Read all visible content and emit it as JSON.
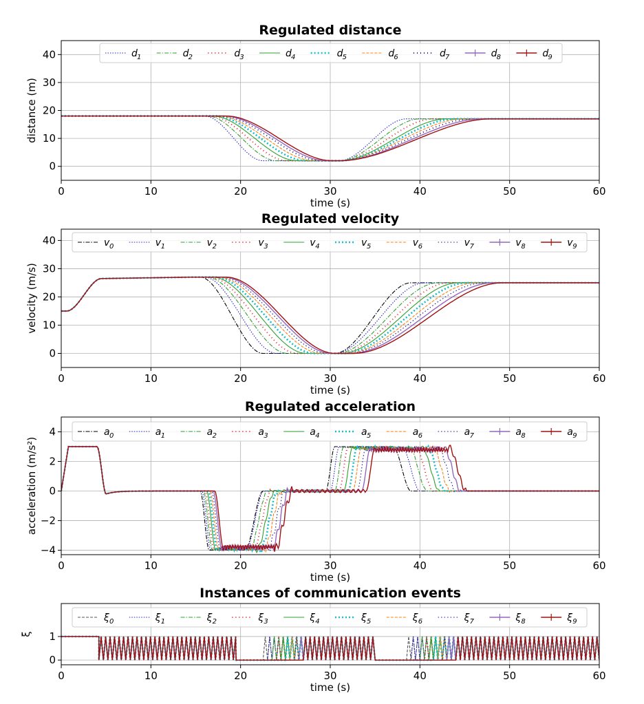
{
  "chart_data": [
    {
      "type": "line",
      "title": "Regulated distance",
      "xlabel": "time (s)",
      "ylabel": "distance (m)",
      "xlim": [
        0,
        60
      ],
      "ylim": [
        -5,
        45
      ],
      "xticks": [
        "0",
        "10",
        "20",
        "30",
        "40",
        "50",
        "60"
      ],
      "yticks": [
        "0",
        "10",
        "20",
        "30",
        "40"
      ],
      "grid": true,
      "legend_placement": "top, single row",
      "series": [
        {
          "symbol": "d",
          "sub": "1",
          "color": "#1f1fd0",
          "style": "dotted",
          "shape": "trough",
          "start": 18,
          "end": 17,
          "low": 2,
          "fall_start": 16,
          "fall_end": 22.5,
          "rise_start": 31,
          "rise_end": 38.5
        },
        {
          "symbol": "d",
          "sub": "2",
          "color": "#2ca02c",
          "style": "dashdot",
          "shape": "trough",
          "start": 18,
          "end": 17,
          "low": 2,
          "fall_start": 16.3,
          "fall_end": 24,
          "rise_start": 31,
          "rise_end": 40
        },
        {
          "symbol": "d",
          "sub": "3",
          "color": "#e8202a",
          "style": "dots",
          "shape": "trough",
          "start": 18,
          "end": 17,
          "low": 2,
          "fall_start": 16.6,
          "fall_end": 25.2,
          "rise_start": 31,
          "rise_end": 41.5
        },
        {
          "symbol": "d",
          "sub": "4",
          "color": "#2ca02c",
          "style": "solid-thin",
          "shape": "trough",
          "start": 18,
          "end": 17,
          "low": 2,
          "fall_start": 16.9,
          "fall_end": 26.3,
          "rise_start": 31,
          "rise_end": 43
        },
        {
          "symbol": "d",
          "sub": "5",
          "color": "#17becf",
          "style": "dots-heavy",
          "shape": "trough",
          "start": 18,
          "end": 17,
          "low": 2,
          "fall_start": 17.2,
          "fall_end": 27.3,
          "rise_start": 31,
          "rise_end": 44
        },
        {
          "symbol": "d",
          "sub": "6",
          "color": "#ff7f0e",
          "style": "dashed",
          "shape": "trough",
          "start": 18,
          "end": 17,
          "low": 2,
          "fall_start": 17.5,
          "fall_end": 28.2,
          "rise_start": 31,
          "rise_end": 45
        },
        {
          "symbol": "d",
          "sub": "7",
          "color": "#1515a0",
          "style": "dots",
          "shape": "trough",
          "start": 18,
          "end": 17,
          "low": 2,
          "fall_start": 17.8,
          "fall_end": 29,
          "rise_start": 31,
          "rise_end": 46
        },
        {
          "symbol": "d",
          "sub": "8",
          "color": "#9467bd",
          "style": "solid-marker",
          "shape": "trough",
          "start": 18,
          "end": 17,
          "low": 2,
          "fall_start": 18.1,
          "fall_end": 29.6,
          "rise_start": 31,
          "rise_end": 47
        },
        {
          "symbol": "d",
          "sub": "9",
          "color": "#a01010",
          "style": "solid-marker",
          "shape": "trough",
          "start": 18,
          "end": 17,
          "low": 2,
          "fall_start": 18.4,
          "fall_end": 30.2,
          "rise_start": 31,
          "rise_end": 48
        }
      ]
    },
    {
      "type": "line",
      "title": "Regulated velocity",
      "xlabel": "time (s)",
      "ylabel": "velocity (m/s)",
      "xlim": [
        0,
        60
      ],
      "ylim": [
        -5,
        44
      ],
      "xticks": [
        "0",
        "10",
        "20",
        "30",
        "40",
        "50",
        "60"
      ],
      "yticks": [
        "0",
        "10",
        "20",
        "30",
        "40"
      ],
      "grid": true,
      "legend_placement": "top, single row",
      "series": [
        {
          "symbol": "v",
          "sub": "0",
          "color": "#000000",
          "style": "dashdot",
          "shape": "velocity",
          "fall_start": 15.5,
          "fall_end": 22.5,
          "rise_start": 30.5,
          "rise_end": 39
        },
        {
          "symbol": "v",
          "sub": "1",
          "color": "#1f1fd0",
          "style": "dotted",
          "shape": "velocity",
          "fall_start": 16,
          "fall_end": 24,
          "rise_start": 30.5,
          "rise_end": 40.5
        },
        {
          "symbol": "v",
          "sub": "2",
          "color": "#2ca02c",
          "style": "dashdot",
          "shape": "velocity",
          "fall_start": 16.3,
          "fall_end": 25.2,
          "rise_start": 30.7,
          "rise_end": 42
        },
        {
          "symbol": "v",
          "sub": "3",
          "color": "#e8202a",
          "style": "dots",
          "shape": "velocity",
          "fall_start": 16.6,
          "fall_end": 26.3,
          "rise_start": 31,
          "rise_end": 43.2
        },
        {
          "symbol": "v",
          "sub": "4",
          "color": "#2ca02c",
          "style": "solid-thin",
          "shape": "velocity",
          "fall_start": 16.9,
          "fall_end": 27.3,
          "rise_start": 31.2,
          "rise_end": 44.3
        },
        {
          "symbol": "v",
          "sub": "5",
          "color": "#17becf",
          "style": "dots-heavy",
          "shape": "velocity",
          "fall_start": 17.2,
          "fall_end": 28.2,
          "rise_start": 31.5,
          "rise_end": 45.3
        },
        {
          "symbol": "v",
          "sub": "6",
          "color": "#ff7f0e",
          "style": "dashed",
          "shape": "velocity",
          "fall_start": 17.5,
          "fall_end": 29,
          "rise_start": 31.8,
          "rise_end": 46.3
        },
        {
          "symbol": "v",
          "sub": "7",
          "color": "#1515a0",
          "style": "cross",
          "shape": "velocity",
          "fall_start": 17.8,
          "fall_end": 29.6,
          "rise_start": 32,
          "rise_end": 47.2
        },
        {
          "symbol": "v",
          "sub": "8",
          "color": "#9467bd",
          "style": "solid-marker",
          "shape": "velocity",
          "fall_start": 18.1,
          "fall_end": 30.1,
          "rise_start": 32.3,
          "rise_end": 48.2
        },
        {
          "symbol": "v",
          "sub": "9",
          "color": "#a01010",
          "style": "solid-marker",
          "shape": "velocity",
          "fall_start": 18.4,
          "fall_end": 30.5,
          "rise_start": 32.6,
          "rise_end": 49.2
        }
      ]
    },
    {
      "type": "line",
      "title": "Regulated acceleration",
      "xlabel": "time (s)",
      "ylabel": "acceleration (m/s²)",
      "xlim": [
        0,
        60
      ],
      "ylim": [
        -4.3,
        5
      ],
      "xticks": [
        "0",
        "10",
        "20",
        "30",
        "40",
        "50",
        "60"
      ],
      "yticks": [
        "−4",
        "−2",
        "0",
        "2",
        "4"
      ],
      "ytick_values": [
        -4,
        -2,
        0,
        2,
        4
      ],
      "grid": true,
      "legend_placement": "top, single row",
      "series": [
        {
          "symbol": "a",
          "sub": "0",
          "color": "#000000",
          "style": "dashdot",
          "shape": "accel",
          "lag": 0,
          "brake_end": 22.5,
          "gap_end": 30.5,
          "push_end": 39
        },
        {
          "symbol": "a",
          "sub": "1",
          "color": "#1f1fd0",
          "style": "dotted",
          "shape": "accel",
          "lag": 0.3,
          "brake_end": 22.6,
          "gap_end": 31,
          "push_end": 40
        },
        {
          "symbol": "a",
          "sub": "2",
          "color": "#2ca02c",
          "style": "dashdot",
          "shape": "accel",
          "lag": 0.6,
          "brake_end": 23,
          "gap_end": 31.5,
          "push_end": 40.8
        },
        {
          "symbol": "a",
          "sub": "3",
          "color": "#e8202a",
          "style": "dots",
          "shape": "accel",
          "lag": 0.9,
          "brake_end": 23.4,
          "gap_end": 32,
          "push_end": 41.5
        },
        {
          "symbol": "a",
          "sub": "4",
          "color": "#2ca02c",
          "style": "solid-thin",
          "shape": "accel",
          "lag": 1.2,
          "brake_end": 23.8,
          "gap_end": 32.5,
          "push_end": 42.2
        },
        {
          "symbol": "a",
          "sub": "5",
          "color": "#17becf",
          "style": "dots-heavy",
          "shape": "accel",
          "lag": 1.5,
          "brake_end": 24.2,
          "gap_end": 33,
          "push_end": 42.8
        },
        {
          "symbol": "a",
          "sub": "6",
          "color": "#ff7f0e",
          "style": "dashed",
          "shape": "accel",
          "lag": 1.8,
          "brake_end": 24.6,
          "gap_end": 33.5,
          "push_end": 43.4
        },
        {
          "symbol": "a",
          "sub": "7",
          "color": "#1515a0",
          "style": "cross",
          "shape": "accel",
          "lag": 2.1,
          "brake_end": 25,
          "gap_end": 34,
          "push_end": 44
        },
        {
          "symbol": "a",
          "sub": "8",
          "color": "#9467bd",
          "style": "solid-marker",
          "shape": "accel",
          "lag": 2.4,
          "brake_end": 25.4,
          "gap_end": 34.5,
          "push_end": 44.6
        },
        {
          "symbol": "a",
          "sub": "9",
          "color": "#a01010",
          "style": "solid-marker",
          "shape": "accel",
          "lag": 2.7,
          "brake_end": 25.8,
          "gap_end": 35,
          "push_end": 45.2
        }
      ]
    },
    {
      "type": "line",
      "title": "Instances of communication events",
      "xlabel": "time (s)",
      "ylabel": "ξ",
      "xlim": [
        0,
        60
      ],
      "ylim": [
        -0.2,
        2.4
      ],
      "xticks": [
        "0",
        "10",
        "20",
        "30",
        "40",
        "50",
        "60"
      ],
      "yticks": [
        "0",
        "1"
      ],
      "grid": true,
      "legend_placement": "top, single row",
      "series": [
        {
          "symbol": "ξ",
          "sub": "0",
          "color": "#555555",
          "style": "dashed",
          "shape": "events",
          "phases": [
            [
              0,
              4.2,
              "high"
            ],
            [
              4.2,
              19.5,
              "pulse"
            ],
            [
              19.5,
              22.5,
              "low"
            ],
            [
              22.5,
              35,
              "pulse"
            ],
            [
              35,
              38.5,
              "low"
            ],
            [
              38.5,
              60,
              "pulse"
            ]
          ]
        },
        {
          "symbol": "ξ",
          "sub": "1",
          "color": "#1f1fd0",
          "style": "dotted",
          "shape": "events",
          "phases": [
            [
              0,
              4.2,
              "high"
            ],
            [
              4.2,
              19.5,
              "pulse"
            ],
            [
              19.5,
              23,
              "low"
            ],
            [
              23,
              35,
              "pulse"
            ],
            [
              35,
              39,
              "low"
            ],
            [
              39,
              60,
              "pulse"
            ]
          ]
        },
        {
          "symbol": "ξ",
          "sub": "2",
          "color": "#2ca02c",
          "style": "dashdot",
          "shape": "events",
          "phases": [
            [
              0,
              4.2,
              "high"
            ],
            [
              4.2,
              19.5,
              "pulse"
            ],
            [
              19.5,
              23.5,
              "low"
            ],
            [
              23.5,
              35,
              "pulse"
            ],
            [
              35,
              40,
              "low"
            ],
            [
              40,
              60,
              "pulse"
            ]
          ]
        },
        {
          "symbol": "ξ",
          "sub": "3",
          "color": "#e8202a",
          "style": "dots",
          "shape": "events",
          "phases": [
            [
              0,
              4.2,
              "high"
            ],
            [
              4.2,
              19.5,
              "pulse"
            ],
            [
              19.5,
              24,
              "low"
            ],
            [
              24,
              35,
              "pulse"
            ],
            [
              35,
              40.5,
              "low"
            ],
            [
              40.5,
              60,
              "pulse"
            ]
          ]
        },
        {
          "symbol": "ξ",
          "sub": "4",
          "color": "#2ca02c",
          "style": "solid-thin",
          "shape": "events",
          "phases": [
            [
              0,
              4.2,
              "high"
            ],
            [
              4.2,
              19.5,
              "pulse"
            ],
            [
              19.5,
              24.5,
              "low"
            ],
            [
              24.5,
              35,
              "pulse"
            ],
            [
              35,
              41,
              "low"
            ],
            [
              41,
              60,
              "pulse"
            ]
          ]
        },
        {
          "symbol": "ξ",
          "sub": "5",
          "color": "#17becf",
          "style": "dots-heavy",
          "shape": "events",
          "phases": [
            [
              0,
              4.2,
              "high"
            ],
            [
              4.2,
              19.5,
              "pulse"
            ],
            [
              19.5,
              25,
              "low"
            ],
            [
              25,
              35,
              "pulse"
            ],
            [
              35,
              41.5,
              "low"
            ],
            [
              41.5,
              60,
              "pulse"
            ]
          ]
        },
        {
          "symbol": "ξ",
          "sub": "6",
          "color": "#ff7f0e",
          "style": "dashed",
          "shape": "events",
          "phases": [
            [
              0,
              4.2,
              "high"
            ],
            [
              4.2,
              19.5,
              "pulse"
            ],
            [
              19.5,
              25.5,
              "low"
            ],
            [
              25.5,
              35,
              "pulse"
            ],
            [
              35,
              42,
              "low"
            ],
            [
              42,
              60,
              "pulse"
            ]
          ]
        },
        {
          "symbol": "ξ",
          "sub": "7",
          "color": "#1515a0",
          "style": "cross",
          "shape": "events",
          "phases": [
            [
              0,
              4.2,
              "high"
            ],
            [
              4.2,
              19.5,
              "pulse"
            ],
            [
              19.5,
              26,
              "low"
            ],
            [
              26,
              35,
              "pulse"
            ],
            [
              35,
              42.5,
              "low"
            ],
            [
              42.5,
              60,
              "pulse"
            ]
          ]
        },
        {
          "symbol": "ξ",
          "sub": "8",
          "color": "#9467bd",
          "style": "solid-marker",
          "shape": "events",
          "phases": [
            [
              0,
              4.2,
              "high"
            ],
            [
              4.2,
              19.5,
              "pulse"
            ],
            [
              19.5,
              26.5,
              "low"
            ],
            [
              26.5,
              35,
              "pulse"
            ],
            [
              35,
              43,
              "low"
            ],
            [
              43,
              60,
              "pulse"
            ]
          ]
        },
        {
          "symbol": "ξ",
          "sub": "9",
          "color": "#a01010",
          "style": "solid-marker",
          "shape": "events",
          "phases": [
            [
              0,
              4.2,
              "high"
            ],
            [
              4.2,
              19.5,
              "pulse"
            ],
            [
              19.5,
              27,
              "low"
            ],
            [
              27,
              35,
              "pulse"
            ],
            [
              35,
              44,
              "low"
            ],
            [
              44,
              60,
              "pulse"
            ]
          ]
        }
      ]
    }
  ]
}
